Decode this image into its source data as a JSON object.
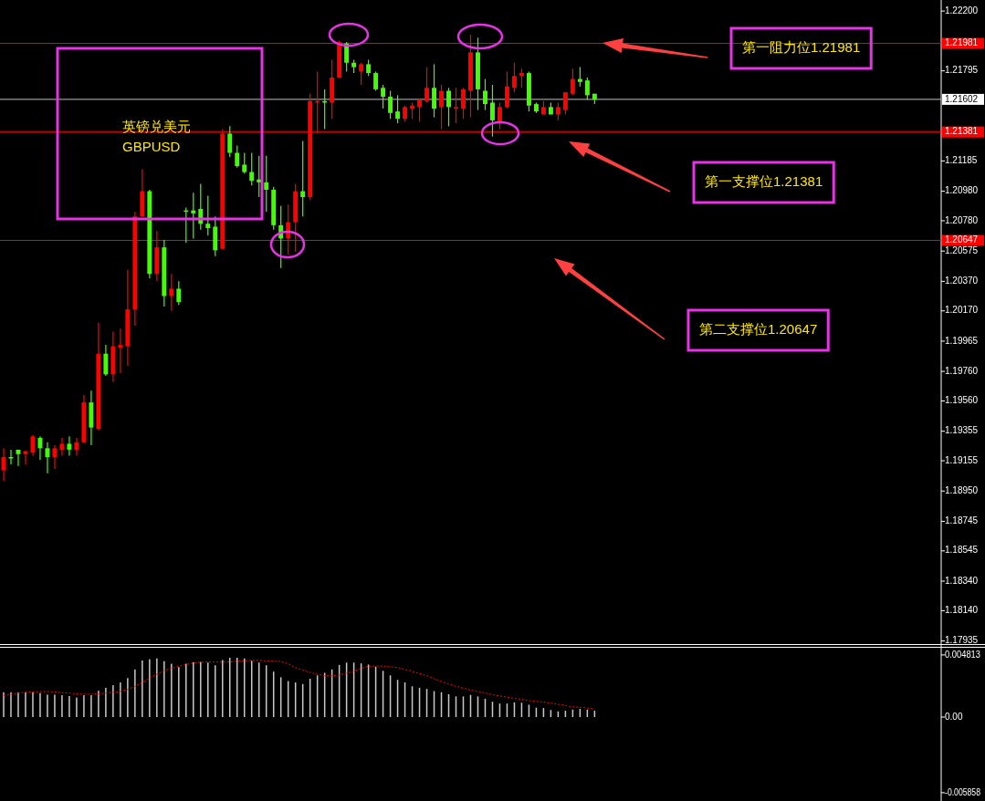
{
  "chart_data": [
    {
      "type": "candlestick",
      "title": "英镑兑美元",
      "subtitle": "GBPUSD",
      "categories": [
        null,
        null,
        null,
        null,
        null,
        null,
        null,
        null,
        null,
        null,
        null,
        null,
        null,
        null,
        null,
        null,
        null,
        null,
        null,
        null,
        null,
        null,
        null,
        null,
        null,
        null,
        null,
        null,
        null,
        null,
        null,
        null,
        null,
        null,
        null,
        null,
        null,
        null,
        null,
        null,
        null,
        null,
        null,
        null,
        null,
        null,
        null,
        null,
        null,
        null,
        null,
        null,
        null,
        null,
        null,
        null,
        null,
        null,
        null,
        null,
        null,
        null,
        null,
        null,
        null,
        null,
        null,
        null,
        null,
        null,
        null,
        null,
        null,
        null,
        null,
        null,
        null,
        null,
        null,
        null,
        null,
        null,
        null,
        null,
        null,
        null,
        null,
        null,
        null,
        null,
        null,
        null,
        null,
        null,
        null,
        null,
        null,
        null,
        null,
        null,
        null,
        null,
        null,
        null,
        null,
        null,
        null,
        null,
        null,
        null,
        null,
        null,
        null,
        null,
        null,
        null,
        null,
        null,
        null,
        null,
        null,
        null,
        null,
        null,
        null,
        null,
        null,
        null,
        null
      ],
      "ohlc": [
        [
          1.1909,
          1.1924,
          1.1902,
          1.1918
        ],
        [
          1.1918,
          1.1923,
          1.1913,
          1.1918
        ],
        [
          1.1923,
          1.1923,
          1.1912,
          1.192
        ],
        [
          1.192,
          1.1922,
          1.1913,
          1.1922
        ],
        [
          1.1921,
          1.1933,
          1.1919,
          1.1932
        ],
        [
          1.1931,
          1.1932,
          1.1916,
          1.1924
        ],
        [
          1.1924,
          1.1928,
          1.1907,
          1.1918
        ],
        [
          1.1918,
          1.1926,
          1.191,
          1.1924
        ],
        [
          1.1923,
          1.1931,
          1.1919,
          1.1927
        ],
        [
          1.1927,
          1.1932,
          1.1919,
          1.1923
        ],
        [
          1.1923,
          1.1931,
          1.1919,
          1.1928
        ],
        [
          1.1928,
          1.196,
          1.1928,
          1.1955
        ],
        [
          1.1955,
          1.1963,
          1.1926,
          1.1938
        ],
        [
          1.1937,
          1.2009,
          1.1936,
          1.1988
        ],
        [
          1.1988,
          1.1994,
          1.1973,
          1.1974
        ],
        [
          1.1974,
          1.2003,
          1.1969,
          1.1993
        ],
        [
          1.1992,
          1.2005,
          1.1975,
          1.1994
        ],
        [
          1.1993,
          1.2045,
          1.198,
          1.2018
        ],
        [
          1.2018,
          1.2084,
          1.2007,
          1.2081
        ],
        [
          1.2081,
          1.2113,
          1.2081,
          1.2098
        ],
        [
          1.2098,
          1.2099,
          1.2039,
          1.2042
        ],
        [
          1.2042,
          1.2071,
          1.2037,
          1.206
        ],
        [
          1.206,
          1.2065,
          1.202,
          1.2027
        ],
        [
          1.2027,
          1.2042,
          1.2017,
          1.2032
        ],
        [
          1.2032,
          1.2037,
          1.2021,
          1.2023
        ],
        [
          1.2085,
          1.2087,
          1.2063,
          1.2085
        ],
        [
          1.2085,
          1.2097,
          1.2066,
          1.2083
        ],
        [
          1.2086,
          1.2103,
          1.2072,
          1.2076
        ],
        [
          1.2076,
          1.2095,
          1.2068,
          1.2073
        ],
        [
          1.2074,
          1.2081,
          1.2054,
          1.2058
        ],
        [
          1.2059,
          1.214,
          1.2059,
          1.2137
        ],
        [
          1.2137,
          1.2142,
          1.2121,
          1.2124
        ],
        [
          1.2124,
          1.2129,
          1.2114,
          1.2115
        ],
        [
          1.2116,
          1.2124,
          1.211,
          1.2111
        ],
        [
          1.2111,
          1.2124,
          1.2102,
          1.2105
        ],
        [
          1.2106,
          1.2122,
          1.2094,
          1.2104
        ],
        [
          1.2104,
          1.2122,
          1.2084,
          1.2099
        ],
        [
          1.2099,
          1.2101,
          1.2072,
          1.2075
        ],
        [
          1.2075,
          1.2088,
          1.2046,
          1.2066
        ],
        [
          1.2066,
          1.2089,
          1.2055,
          1.2077
        ],
        [
          1.2077,
          1.2103,
          1.2057,
          1.2098
        ],
        [
          1.2098,
          1.2132,
          1.2081,
          1.2094
        ],
        [
          1.2094,
          1.2164,
          1.2092,
          1.2159
        ],
        [
          1.2158,
          1.2179,
          1.2137,
          1.2159
        ],
        [
          1.2159,
          1.2167,
          1.214,
          1.2158
        ],
        [
          1.2158,
          1.2187,
          1.2147,
          1.2175
        ],
        [
          1.2175,
          1.22,
          1.2175,
          1.2199
        ],
        [
          1.2198,
          1.2199,
          1.2179,
          1.2185
        ],
        [
          1.2185,
          1.2187,
          1.2178,
          1.2182
        ],
        [
          1.2179,
          1.2185,
          1.217,
          1.2184
        ],
        [
          1.2184,
          1.2187,
          1.2176,
          1.2178
        ],
        [
          1.2178,
          1.2179,
          1.2166,
          1.2167
        ],
        [
          1.2168,
          1.217,
          1.2154,
          1.2162
        ],
        [
          1.2162,
          1.2166,
          1.2147,
          1.2151
        ],
        [
          1.2152,
          1.2163,
          1.2144,
          1.2147
        ],
        [
          1.2147,
          1.2156,
          1.2145,
          1.2155
        ],
        [
          1.2154,
          1.2158,
          1.2147,
          1.2156
        ],
        [
          1.2155,
          1.2161,
          1.2145,
          1.216
        ],
        [
          1.2159,
          1.2182,
          1.2158,
          1.2168
        ],
        [
          1.2168,
          1.2184,
          1.2148,
          1.2154
        ],
        [
          1.2155,
          1.217,
          1.214,
          1.2166
        ],
        [
          1.2166,
          1.2168,
          1.2142,
          1.2155
        ],
        [
          1.2155,
          1.2168,
          1.2144,
          1.2155
        ],
        [
          1.2154,
          1.2168,
          1.2147,
          1.2167
        ],
        [
          1.2166,
          1.2204,
          1.2148,
          1.2192
        ],
        [
          1.2192,
          1.2202,
          1.2153,
          1.2167
        ],
        [
          1.2166,
          1.2174,
          1.2153,
          1.2157
        ],
        [
          1.2158,
          1.217,
          1.2135,
          1.2146
        ],
        [
          1.2144,
          1.2158,
          1.214,
          1.2155
        ],
        [
          1.2155,
          1.2179,
          1.2154,
          1.2169
        ],
        [
          1.2168,
          1.2185,
          1.2165,
          1.2176
        ],
        [
          1.2176,
          1.2181,
          1.2168,
          1.2178
        ],
        [
          1.2178,
          1.2179,
          1.2152,
          1.2156
        ],
        [
          1.2157,
          1.2158,
          1.2151,
          1.2152
        ],
        [
          1.215,
          1.2159,
          1.215,
          1.2155
        ],
        [
          1.2155,
          1.2158,
          1.215,
          1.215
        ],
        [
          1.215,
          1.2158,
          1.2146,
          1.2155
        ],
        [
          1.2153,
          1.2165,
          1.215,
          1.2165
        ],
        [
          1.2164,
          1.2181,
          1.2163,
          1.2174
        ],
        [
          1.2174,
          1.2182,
          1.2169,
          1.2172
        ],
        [
          1.2173,
          1.2175,
          1.216,
          1.2163
        ],
        [
          1.2164,
          1.2164,
          1.2157,
          1.216
        ],
        null,
        null,
        null,
        null,
        null,
        null,
        null,
        null,
        null,
        null,
        null,
        null,
        null,
        null,
        null,
        null,
        null,
        null,
        null,
        null,
        null,
        null,
        null,
        null,
        null,
        null,
        null,
        null,
        null,
        null,
        null,
        null,
        null,
        null,
        null,
        null,
        null,
        null,
        null,
        null,
        null,
        null,
        null,
        null,
        null,
        null,
        null
      ],
      "colors": [
        "#ff0000",
        "#40ff00",
        "#40ff00",
        "#ff0000",
        "#ff0000",
        "#40ff00",
        "#40ff00",
        "#ff0000",
        "#ff0000",
        "#40ff00",
        "#ff0000",
        "#ff0000",
        "#40ff00",
        "#ff0000",
        "#40ff00",
        "#ff0000",
        "#ff0000",
        "#ff0000",
        "#ff0000",
        "#ff0000",
        "#40ff00",
        "#ff0000",
        "#40ff00",
        "#ff0000",
        "#40ff00",
        "#40ff00",
        "#40ff00",
        "#40ff00",
        "#40ff00",
        "#40ff00",
        "#ff0000",
        "#40ff00",
        "#40ff00",
        "#40ff00",
        "#40ff00",
        "#40ff00",
        "#40ff00",
        "#40ff00",
        "#40ff00",
        "#ff0000",
        "#ff0000",
        "#40ff00",
        "#ff0000",
        "#ff0000",
        "#40ff00",
        "#ff0000",
        "#ff0000",
        "#40ff00",
        "#40ff00",
        "#ff0000",
        "#40ff00",
        "#40ff00",
        "#40ff00",
        "#40ff00",
        "#40ff00",
        "#ff0000",
        "#ff0000",
        "#ff0000",
        "#ff0000",
        "#40ff00",
        "#ff0000",
        "#40ff00",
        "#ff0000",
        "#ff0000",
        "#ff0000",
        "#40ff00",
        "#40ff00",
        "#40ff00",
        "#ff0000",
        "#ff0000",
        "#ff0000",
        "#ff0000",
        "#40ff00",
        "#40ff00",
        "#ff0000",
        "#40ff00",
        "#ff0000",
        "#ff0000",
        "#ff0000",
        "#40ff00",
        "#40ff00",
        "#40ff00",
        null,
        null,
        null,
        null,
        null,
        null,
        null,
        null,
        null,
        null,
        null,
        null,
        null,
        null,
        null,
        null,
        null,
        null,
        null,
        null,
        null,
        null,
        null,
        null,
        null,
        null,
        null,
        null,
        null,
        null,
        null,
        null,
        null,
        null,
        null,
        null,
        null,
        null,
        null,
        null,
        null,
        null,
        null,
        null,
        null,
        null,
        null
      ],
      "ylim": [
        1.1792,
        1.2225
      ],
      "yticks": [
        {
          "value": 1.222,
          "label": "1.22200"
        },
        1.21795,
        1.21185,
        {
          "value": 1.2098,
          "label": "1.20980"
        },
        {
          "value": 1.2078,
          "label": "1.20780"
        },
        1.20575,
        {
          "value": 1.2037,
          "label": "1.20370"
        },
        {
          "value": 1.2017,
          "label": "1.20170"
        },
        1.19965,
        {
          "value": 1.1976,
          "label": "1.19760"
        },
        {
          "value": 1.1956,
          "label": "1.19560"
        },
        1.19355,
        1.19155,
        {
          "value": 1.1895,
          "label": "1.18950"
        },
        1.18745,
        1.18545,
        {
          "value": 1.1834,
          "label": "1.18340"
        },
        {
          "value": 1.1814,
          "label": "1.18140"
        },
        1.17935
      ],
      "ref_lines": [
        {
          "axis": "y",
          "value": 1.21981,
          "label": "1.21981",
          "color": "#ff0000"
        },
        {
          "axis": "y",
          "value": 1.21602,
          "label": "1.21602",
          "color": "#c0c0c0"
        },
        {
          "axis": "y",
          "value": 1.21381,
          "label": "1.21381",
          "color": "#ff0000"
        },
        {
          "axis": "y",
          "value": 1.20647,
          "label": "1.20647",
          "color": "#ff0000"
        }
      ],
      "annotations": [
        "第一阻力位1.21981",
        "第一支撑位1.21381",
        "第二支撑位1.20647"
      ]
    },
    {
      "type": "bar",
      "categories": [
        null,
        null,
        null,
        null,
        null,
        null,
        null,
        null,
        null,
        null,
        null,
        null,
        null,
        null,
        null,
        null,
        null,
        null,
        null,
        null,
        null,
        null,
        null,
        null,
        null,
        null,
        null,
        null,
        null,
        null,
        null,
        null,
        null,
        null,
        null,
        null,
        null,
        null,
        null,
        null,
        null,
        null,
        null,
        null,
        null,
        null,
        null,
        null,
        null,
        null,
        null,
        null,
        null,
        null,
        null,
        null,
        null,
        null,
        null,
        null,
        null,
        null,
        null,
        null,
        null,
        null,
        null,
        null,
        null,
        null,
        null,
        null,
        null,
        null,
        null,
        null,
        null,
        null,
        null,
        null,
        null,
        null,
        null,
        null,
        null,
        null,
        null,
        null,
        null,
        null,
        null,
        null,
        null,
        null,
        null,
        null,
        null,
        null,
        null,
        null,
        null,
        null,
        null,
        null,
        null,
        null,
        null,
        null,
        null,
        null,
        null,
        null,
        null,
        null,
        null,
        null,
        null,
        null,
        null,
        null,
        null,
        null,
        null,
        null,
        null,
        null,
        null,
        null,
        null
      ],
      "series": [
        {
          "type": "bar",
          "color": "#c8c8c8",
          "values": [
            0.00192,
            0.00192,
            0.00192,
            0.00192,
            0.00192,
            0.00186,
            0.00174,
            0.00174,
            0.00169,
            0.00163,
            0.00151,
            0.00169,
            0.00169,
            0.00204,
            0.00227,
            0.00247,
            0.00268,
            0.00302,
            0.00369,
            0.00439,
            0.00448,
            0.00454,
            0.00433,
            0.00413,
            0.00387,
            0.00413,
            0.00425,
            0.00427,
            0.00422,
            0.00401,
            0.00442,
            0.00459,
            0.00459,
            0.00454,
            0.00436,
            0.00422,
            0.00401,
            0.00352,
            0.00308,
            0.00279,
            0.00268,
            0.00256,
            0.00297,
            0.00323,
            0.00343,
            0.00369,
            0.00404,
            0.00422,
            0.00422,
            0.00416,
            0.00407,
            0.0039,
            0.00358,
            0.00323,
            0.00288,
            0.00268,
            0.00238,
            0.00227,
            0.00218,
            0.00201,
            0.00192,
            0.00177,
            0.0016,
            0.0016,
            0.00172,
            0.0016,
            0.00142,
            0.00119,
            0.00105,
            0.00105,
            0.00113,
            0.00111,
            0.00096,
            0.00073,
            0.0007,
            0.00055,
            0.00044,
            0.00049,
            0.00058,
            0.00064,
            0.00058,
            0.00049,
            null,
            null,
            null,
            null,
            null,
            null,
            null,
            null,
            null,
            null,
            null,
            null,
            null,
            null,
            null,
            null,
            null,
            null,
            null,
            null,
            null,
            null,
            null,
            null,
            null,
            null,
            null,
            null,
            null,
            null,
            null,
            null,
            null,
            null,
            null,
            null,
            null,
            null,
            null,
            null,
            null,
            null,
            null,
            null,
            null,
            null,
            null
          ]
        },
        {
          "type": "line",
          "color": "#ff0000",
          "line_style": "dotted",
          "values": [
            0.00166,
            0.00177,
            0.00186,
            0.00192,
            0.00195,
            0.00198,
            0.00198,
            0.00195,
            0.00189,
            0.00186,
            0.0018,
            0.00177,
            0.00177,
            0.0018,
            0.00186,
            0.00192,
            0.00198,
            0.00215,
            0.00238,
            0.00268,
            0.00302,
            0.00332,
            0.00361,
            0.00378,
            0.00393,
            0.00407,
            0.00419,
            0.00425,
            0.00427,
            0.00427,
            0.00425,
            0.00427,
            0.00433,
            0.00436,
            0.00439,
            0.00439,
            0.00436,
            0.00433,
            0.0043,
            0.00413,
            0.00384,
            0.00364,
            0.00346,
            0.00332,
            0.0032,
            0.0032,
            0.00326,
            0.0034,
            0.00355,
            0.00378,
            0.00393,
            0.00395,
            0.00395,
            0.0039,
            0.00384,
            0.00369,
            0.00355,
            0.00337,
            0.0032,
            0.00297,
            0.00276,
            0.00256,
            0.00238,
            0.00224,
            0.00209,
            0.00198,
            0.00186,
            0.00174,
            0.00163,
            0.00154,
            0.00145,
            0.00137,
            0.00128,
            0.00122,
            0.00116,
            0.00108,
            0.00099,
            0.0009,
            0.00079,
            0.00076,
            0.0007,
            0.00061,
            null,
            null,
            null,
            null,
            null,
            null,
            null,
            null,
            null,
            null,
            null,
            null,
            null,
            null,
            null,
            null,
            null,
            null,
            null,
            null,
            null,
            null,
            null,
            null,
            null,
            null,
            null,
            null,
            null,
            null,
            null,
            null,
            null,
            null,
            null,
            null,
            null,
            null,
            null,
            null,
            null,
            null,
            null,
            null,
            null,
            null,
            null
          ]
        }
      ],
      "ylim": [
        -0.0065,
        0.0053
      ],
      "yticks": [
        0.004813,
        {
          "value": 0,
          "label": "0.00"
        },
        -0.005858
      ]
    }
  ]
}
